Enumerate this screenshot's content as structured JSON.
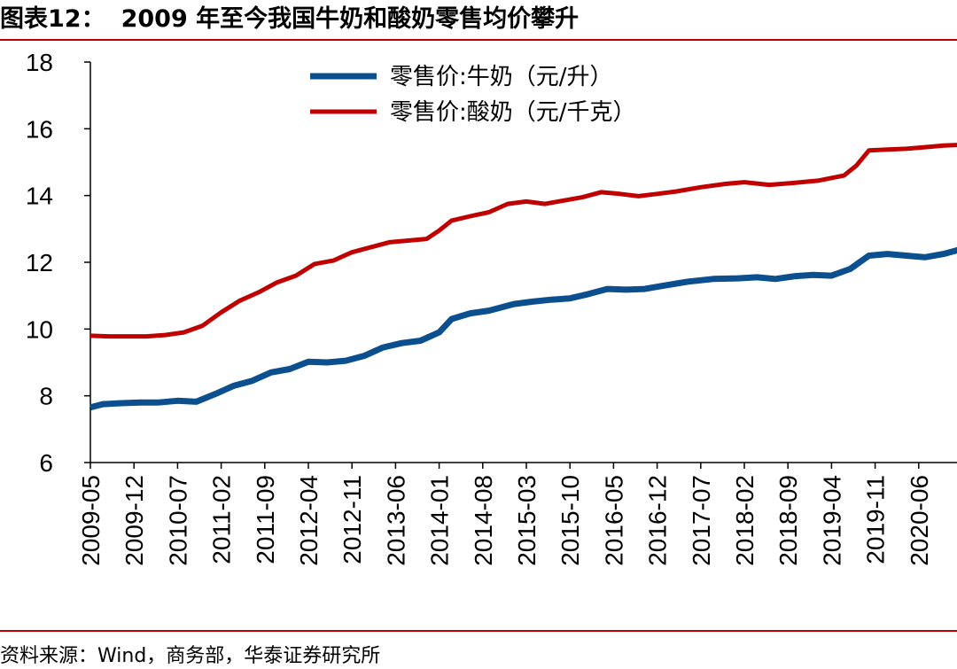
{
  "header": {
    "label": "图表12：",
    "title": "2009 年至今我国牛奶和酸奶零售均价攀升"
  },
  "footer": {
    "source": "资料来源：Wind，商务部，华泰证券研究所"
  },
  "colors": {
    "milk": "#0b4f8e",
    "yogurt": "#c00000",
    "rule": "#c00000"
  },
  "chart_data": {
    "type": "line",
    "title": "2009 年至今我国牛奶和酸奶零售均价攀升",
    "xlabel": "",
    "ylabel": "",
    "ylim": [
      6,
      18
    ],
    "yticks": [
      6,
      8,
      10,
      12,
      14,
      16,
      18
    ],
    "x_tick_labels": [
      "2009-05",
      "2009-12",
      "2010-07",
      "2011-02",
      "2011-09",
      "2012-04",
      "2012-11",
      "2013-06",
      "2014-01",
      "2014-08",
      "2015-03",
      "2015-10",
      "2016-05",
      "2016-12",
      "2017-07",
      "2018-02",
      "2018-09",
      "2019-04",
      "2019-11",
      "2020-06"
    ],
    "x_start": "2009-05",
    "x_end": "2021-01",
    "legend_position": "top-center",
    "grid": false,
    "series": [
      {
        "name": "零售价:牛奶（元/升）",
        "color": "#0b4f8e",
        "points": [
          [
            "2009-05",
            7.65
          ],
          [
            "2009-07",
            7.75
          ],
          [
            "2009-10",
            7.78
          ],
          [
            "2010-01",
            7.8
          ],
          [
            "2010-04",
            7.8
          ],
          [
            "2010-07",
            7.85
          ],
          [
            "2010-10",
            7.82
          ],
          [
            "2011-01",
            8.05
          ],
          [
            "2011-04",
            8.3
          ],
          [
            "2011-07",
            8.45
          ],
          [
            "2011-10",
            8.7
          ],
          [
            "2012-01",
            8.8
          ],
          [
            "2012-04",
            9.02
          ],
          [
            "2012-07",
            9.0
          ],
          [
            "2012-10",
            9.05
          ],
          [
            "2013-01",
            9.2
          ],
          [
            "2013-04",
            9.45
          ],
          [
            "2013-07",
            9.58
          ],
          [
            "2013-10",
            9.65
          ],
          [
            "2014-01",
            9.9
          ],
          [
            "2014-03",
            10.3
          ],
          [
            "2014-06",
            10.47
          ],
          [
            "2014-09",
            10.55
          ],
          [
            "2015-01",
            10.75
          ],
          [
            "2015-04",
            10.82
          ],
          [
            "2015-07",
            10.88
          ],
          [
            "2015-10",
            10.92
          ],
          [
            "2016-01",
            11.05
          ],
          [
            "2016-04",
            11.2
          ],
          [
            "2016-07",
            11.18
          ],
          [
            "2016-10",
            11.2
          ],
          [
            "2017-01",
            11.3
          ],
          [
            "2017-05",
            11.42
          ],
          [
            "2017-09",
            11.5
          ],
          [
            "2018-01",
            11.52
          ],
          [
            "2018-04",
            11.55
          ],
          [
            "2018-07",
            11.5
          ],
          [
            "2018-10",
            11.58
          ],
          [
            "2019-01",
            11.62
          ],
          [
            "2019-04",
            11.6
          ],
          [
            "2019-07",
            11.8
          ],
          [
            "2019-10",
            12.2
          ],
          [
            "2020-01",
            12.25
          ],
          [
            "2020-04",
            12.2
          ],
          [
            "2020-07",
            12.15
          ],
          [
            "2020-10",
            12.25
          ],
          [
            "2021-01",
            12.4
          ]
        ]
      },
      {
        "name": "零售价:酸奶（元/千克）",
        "color": "#c00000",
        "points": [
          [
            "2009-05",
            9.8
          ],
          [
            "2009-08",
            9.78
          ],
          [
            "2009-11",
            9.78
          ],
          [
            "2010-02",
            9.78
          ],
          [
            "2010-05",
            9.82
          ],
          [
            "2010-08",
            9.9
          ],
          [
            "2010-11",
            10.1
          ],
          [
            "2011-02",
            10.5
          ],
          [
            "2011-05",
            10.85
          ],
          [
            "2011-08",
            11.1
          ],
          [
            "2011-11",
            11.4
          ],
          [
            "2012-02",
            11.6
          ],
          [
            "2012-05",
            11.95
          ],
          [
            "2012-08",
            12.05
          ],
          [
            "2012-11",
            12.3
          ],
          [
            "2013-02",
            12.45
          ],
          [
            "2013-05",
            12.6
          ],
          [
            "2013-08",
            12.65
          ],
          [
            "2013-11",
            12.7
          ],
          [
            "2014-01",
            12.95
          ],
          [
            "2014-03",
            13.25
          ],
          [
            "2014-06",
            13.38
          ],
          [
            "2014-09",
            13.5
          ],
          [
            "2014-12",
            13.75
          ],
          [
            "2015-03",
            13.82
          ],
          [
            "2015-06",
            13.75
          ],
          [
            "2015-09",
            13.85
          ],
          [
            "2015-12",
            13.95
          ],
          [
            "2016-03",
            14.1
          ],
          [
            "2016-06",
            14.05
          ],
          [
            "2016-09",
            13.98
          ],
          [
            "2016-12",
            14.05
          ],
          [
            "2017-03",
            14.12
          ],
          [
            "2017-07",
            14.25
          ],
          [
            "2017-11",
            14.35
          ],
          [
            "2018-02",
            14.4
          ],
          [
            "2018-06",
            14.32
          ],
          [
            "2018-10",
            14.38
          ],
          [
            "2019-02",
            14.45
          ],
          [
            "2019-06",
            14.6
          ],
          [
            "2019-08",
            14.9
          ],
          [
            "2019-10",
            15.35
          ],
          [
            "2020-01",
            15.38
          ],
          [
            "2020-04",
            15.4
          ],
          [
            "2020-07",
            15.45
          ],
          [
            "2020-10",
            15.5
          ],
          [
            "2021-01",
            15.52
          ]
        ]
      }
    ]
  }
}
